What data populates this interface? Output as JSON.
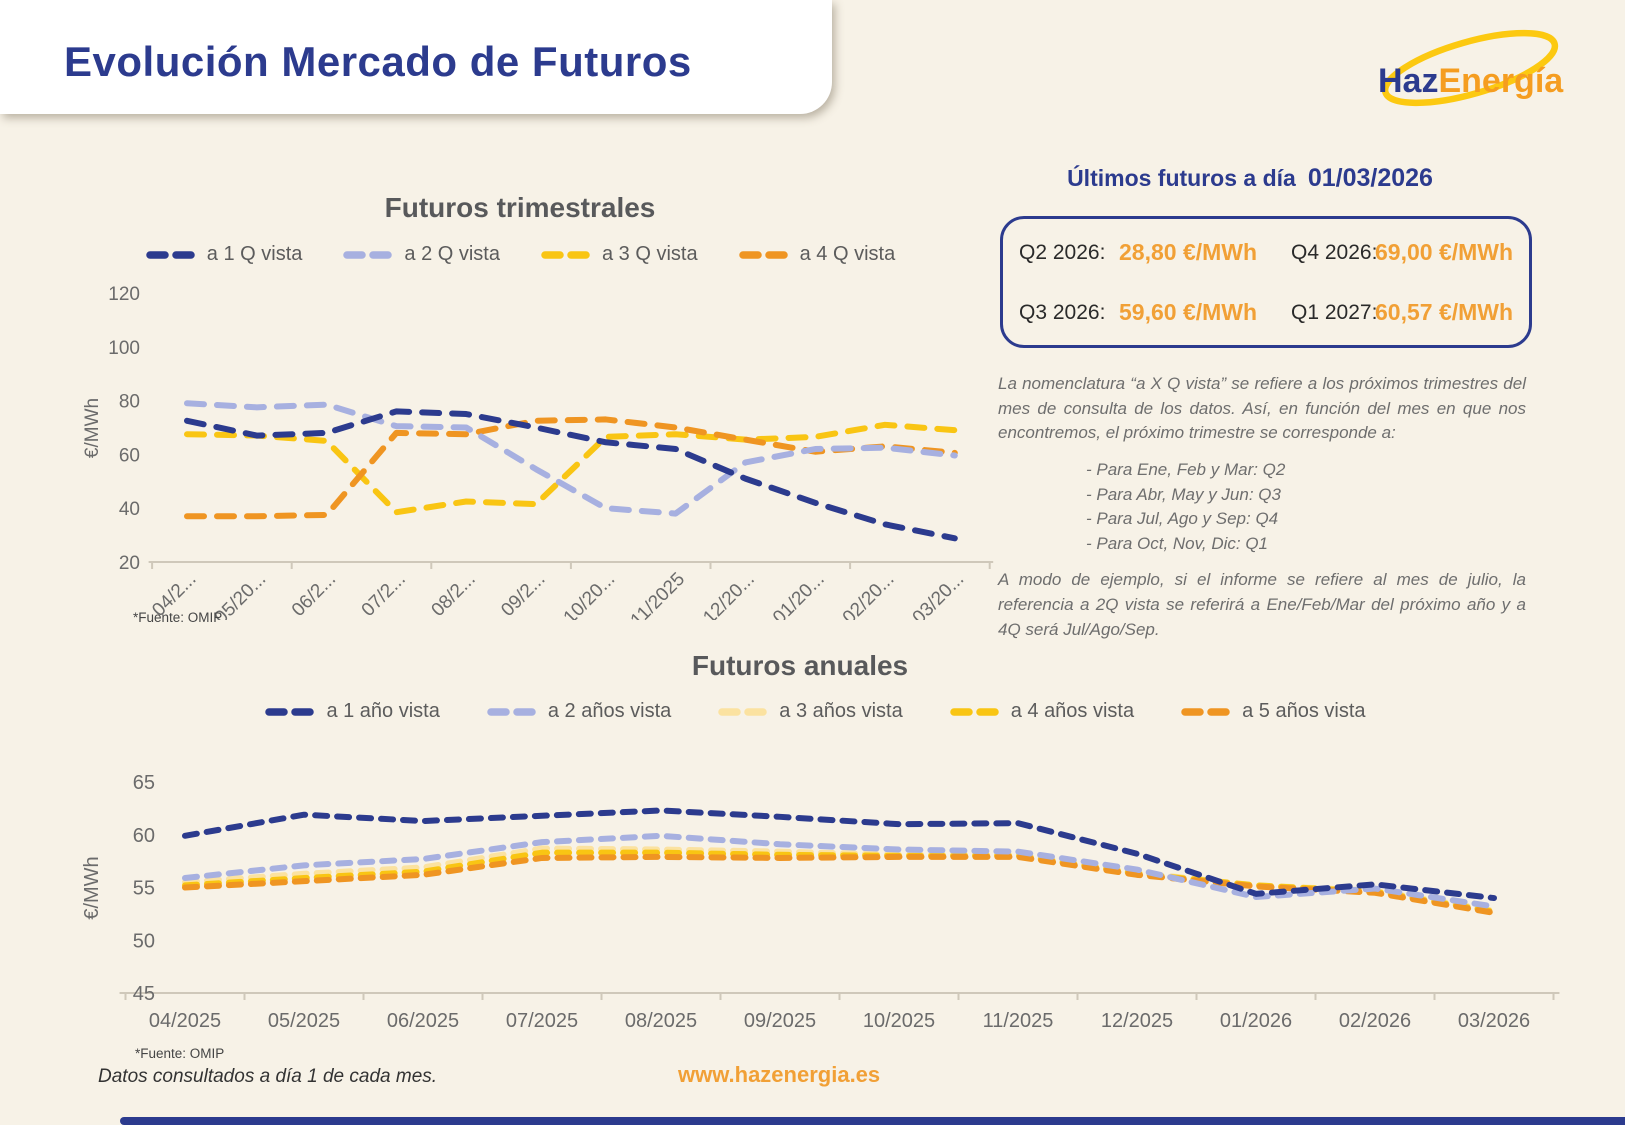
{
  "page": {
    "title": "Evolución Mercado de Futuros",
    "logo": {
      "part1": "Haz",
      "part2": "Energía"
    }
  },
  "latest": {
    "heading": "Últimos futuros a día",
    "date": "01/03/2026",
    "items": [
      {
        "label": "Q2 2026:",
        "value": "28,80 €/MWh"
      },
      {
        "label": "Q4 2026:",
        "value": "69,00 €/MWh"
      },
      {
        "label": "Q3 2026:",
        "value": "59,60 €/MWh"
      },
      {
        "label": "Q1 2027:",
        "value": "60,57 €/MWh"
      }
    ]
  },
  "explanation": {
    "p1": "La nomenclatura “a X Q vista”  se refiere a los próximos trimestres del mes de consulta de los datos. Así, en función del mes en que nos encontremos, el próximo trimestre se corresponde a:",
    "list": [
      "- Para Ene, Feb y Mar: Q2",
      "- Para Abr, May y Jun: Q3",
      "- Para Jul, Ago y Sep: Q4",
      "- Para Oct, Nov, Dic: Q1"
    ],
    "p2": "A modo de ejemplo, si el informe se refiere al mes de julio, la referencia a 2Q vista se referirá a Ene/Feb/Mar del próximo año y a 4Q será Jul/Ago/Sep."
  },
  "footers": {
    "source_quarterly": "*Fuente: OMIP",
    "source_annual": "*Fuente: OMIP",
    "note": "Datos consultados a día 1 de cada mes.",
    "website": "www.hazenergia.es"
  },
  "chart_data": [
    {
      "type": "line",
      "title": "Futuros trimestrales",
      "ylabel": "€/MWh",
      "ylim": [
        20,
        120
      ],
      "yticks": [
        20,
        40,
        60,
        80,
        100,
        120
      ],
      "grid": false,
      "line_style": "dashed",
      "legend_position": "top",
      "x": [
        "04/2025",
        "05/2025",
        "06/2025",
        "07/2025",
        "08/2025",
        "09/2025",
        "10/2025",
        "11/2025",
        "12/2025",
        "01/2026",
        "02/2026",
        "03/2026"
      ],
      "x_labels_display": [
        "04/2...",
        "05/20...",
        "06/2...",
        "07/2...",
        "08/2...",
        "09/2...",
        "10/20...",
        "11/2025",
        "12/20...",
        "01/20...",
        "02/20...",
        "03/20..."
      ],
      "series": [
        {
          "name": "a 1 Q vista",
          "color": "#2c3b8e",
          "values": [
            72.5,
            67,
            68,
            76,
            75,
            70,
            64.5,
            62,
            51,
            42,
            34,
            28.8
          ]
        },
        {
          "name": "a 2 Q vista",
          "color": "#a7b0e0",
          "values": [
            79,
            77.5,
            78.5,
            70.5,
            70,
            54.5,
            40,
            38,
            57,
            62,
            62.5,
            59.6
          ]
        },
        {
          "name": "a 3 Q vista",
          "color": "#f9c513",
          "values": [
            67.5,
            67,
            65,
            38.5,
            42.5,
            41.5,
            66.5,
            67.5,
            65.5,
            66.5,
            71,
            69
          ]
        },
        {
          "name": "a 4 Q vista",
          "color": "#ef9522",
          "values": [
            37,
            37,
            37.5,
            68,
            67.5,
            72.5,
            73,
            70,
            65.5,
            61,
            63,
            60.57
          ]
        }
      ]
    },
    {
      "type": "line",
      "title": "Futuros anuales",
      "ylabel": "€/MWh",
      "ylim": [
        45,
        65
      ],
      "yticks": [
        45,
        50,
        55,
        60,
        65
      ],
      "grid": false,
      "line_style": "dashed",
      "legend_position": "top",
      "x": [
        "04/2025",
        "05/2025",
        "06/2025",
        "07/2025",
        "08/2025",
        "09/2025",
        "10/2025",
        "11/2025",
        "12/2025",
        "01/2026",
        "02/2026",
        "03/2026"
      ],
      "series": [
        {
          "name": "a 1 año vista",
          "color": "#2c3b8e",
          "values": [
            59.9,
            61.9,
            61.3,
            61.8,
            62.3,
            61.7,
            61.0,
            61.1,
            58.2,
            54.4,
            55.3,
            54.0
          ]
        },
        {
          "name": "a 2 años vista",
          "color": "#a7b0e0",
          "values": [
            55.9,
            57.1,
            57.7,
            59.3,
            59.9,
            59.1,
            58.6,
            58.4,
            56.7,
            54.1,
            54.9,
            53.2
          ]
        },
        {
          "name": "a 3 años vista",
          "color": "#fbe2a0",
          "values": [
            55.5,
            56.3,
            56.9,
            58.7,
            58.6,
            58.4,
            58.1,
            58.1,
            56.4,
            55.2,
            54.7,
            52.8
          ]
        },
        {
          "name": "a 4 años vista",
          "color": "#f9c513",
          "values": [
            55.2,
            55.9,
            56.5,
            58.3,
            58.3,
            58.1,
            58.0,
            58.0,
            56.3,
            55.2,
            54.6,
            52.7
          ]
        },
        {
          "name": "a 5 años vista",
          "color": "#ef9522",
          "values": [
            55.0,
            55.6,
            56.2,
            57.8,
            57.9,
            57.8,
            57.9,
            57.9,
            56.2,
            55.1,
            54.5,
            52.6
          ]
        }
      ]
    }
  ]
}
